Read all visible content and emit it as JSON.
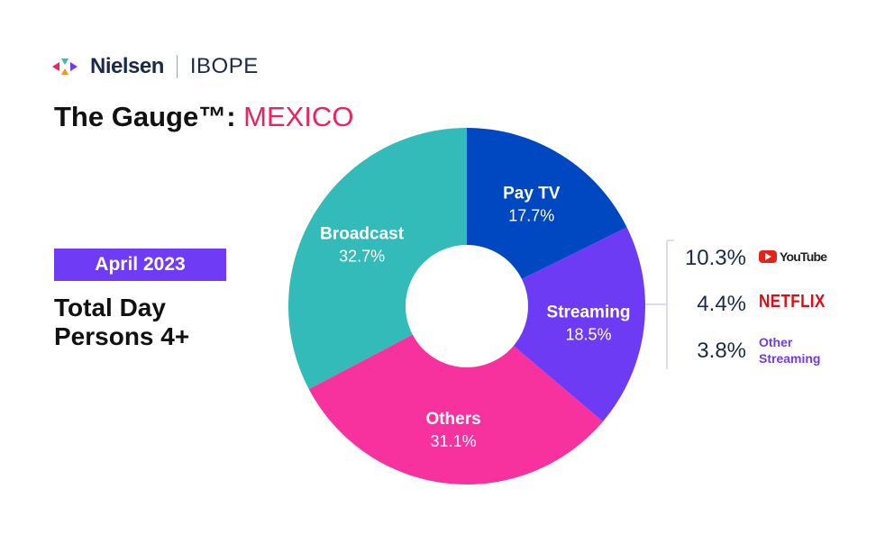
{
  "header": {
    "brand": "Nielsen",
    "partner": "IBOPE",
    "title_prefix": "The Gauge™: ",
    "title_country": "MEXICO"
  },
  "period": "April 2023",
  "subtitle_line1": "Total Day",
  "subtitle_line2": "Persons 4+",
  "chart_data": {
    "type": "pie",
    "donut": true,
    "categories": [
      "Pay TV",
      "Streaming",
      "Others",
      "Broadcast"
    ],
    "values": [
      17.7,
      18.5,
      31.1,
      32.7
    ],
    "labels": [
      "17.7%",
      "18.5%",
      "31.1%",
      "32.7%"
    ],
    "colors": [
      "#0047c2",
      "#6e3bf5",
      "#f7319e",
      "#33bbb9"
    ],
    "breakdown": {
      "parent": "Streaming",
      "items": [
        {
          "name": "YouTube",
          "value": "10.3%",
          "color": "#e62117"
        },
        {
          "name": "NETFLIX",
          "value": "4.4%",
          "color": "#e50914"
        },
        {
          "name": "Other Streaming",
          "value": "3.8%",
          "color": "#6e3bf5"
        }
      ]
    }
  }
}
